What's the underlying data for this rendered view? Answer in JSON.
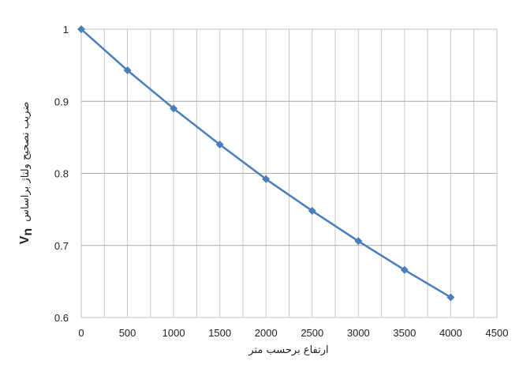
{
  "chart_data": {
    "type": "line",
    "x": [
      0,
      500,
      1000,
      1500,
      2000,
      2500,
      3000,
      3500,
      4000
    ],
    "series": [
      {
        "values": [
          1.0,
          0.943,
          0.89,
          0.84,
          0.792,
          0.748,
          0.706,
          0.666,
          0.628
        ],
        "color": "#4a7ebb"
      }
    ],
    "xlabel": "ارتفاع برحسب متر",
    "ylabel_text": "ضریب تصحیح ولتاژ براساس",
    "ylabel_symbol": "V",
    "ylabel_subscript": "n",
    "xlim": [
      0,
      4500
    ],
    "ylim": [
      0.6,
      1.0
    ],
    "x_ticks": [
      "0",
      "500",
      "1000",
      "1500",
      "2000",
      "2500",
      "3000",
      "3500",
      "4000",
      "4500"
    ],
    "y_ticks": [
      "0.6",
      "0.7",
      "0.8",
      "0.9",
      "1"
    ],
    "grid": true
  }
}
